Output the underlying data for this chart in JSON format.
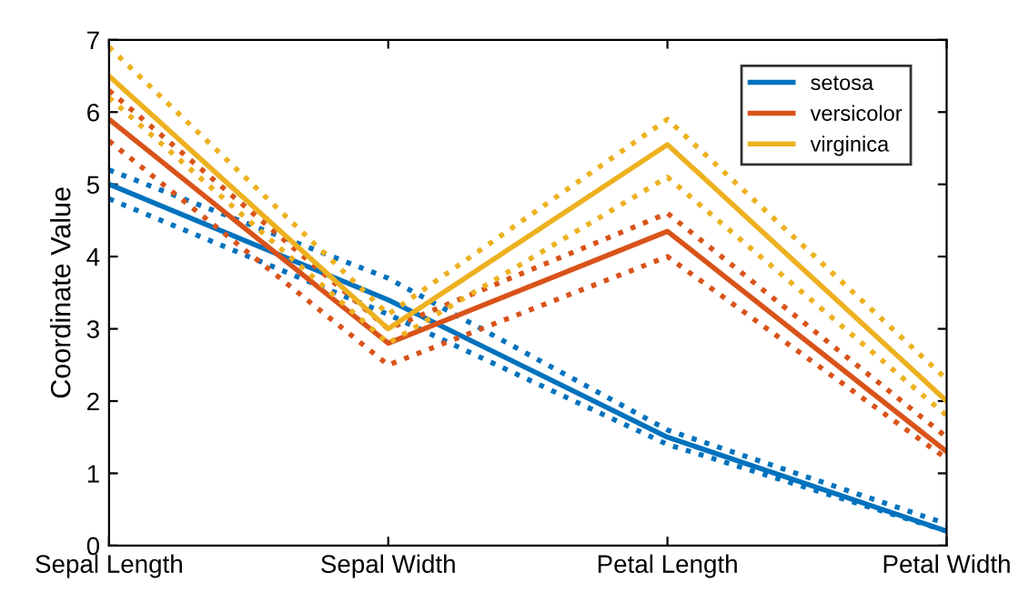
{
  "chart_data": {
    "type": "line",
    "ylabel": "Coordinate Value",
    "categories": [
      "Sepal Length",
      "Sepal Width",
      "Petal Length",
      "Petal Width"
    ],
    "series": [
      {
        "name": "setosa",
        "color": "#0072bd",
        "line_style": "solid",
        "values": [
          5.0,
          3.4,
          1.5,
          0.2
        ]
      },
      {
        "color": "#0072bd",
        "line_style": "dotted",
        "values": [
          4.8,
          3.2,
          1.4,
          0.2
        ]
      },
      {
        "color": "#0072bd",
        "line_style": "dotted",
        "values": [
          5.2,
          3.7,
          1.6,
          0.3
        ]
      },
      {
        "name": "versicolor",
        "color": "#d95319",
        "line_style": "solid",
        "values": [
          5.9,
          2.8,
          4.35,
          1.3
        ]
      },
      {
        "color": "#d95319",
        "line_style": "dotted",
        "values": [
          5.6,
          2.5,
          4.0,
          1.2
        ]
      },
      {
        "color": "#d95319",
        "line_style": "dotted",
        "values": [
          6.3,
          3.0,
          4.6,
          1.5
        ]
      },
      {
        "name": "virginica",
        "color": "#edb120",
        "line_style": "solid",
        "values": [
          6.5,
          3.0,
          5.55,
          2.0
        ]
      },
      {
        "color": "#edb120",
        "line_style": "dotted",
        "values": [
          6.2,
          2.8,
          5.1,
          1.8
        ]
      },
      {
        "color": "#edb120",
        "line_style": "dotted",
        "values": [
          6.9,
          3.2,
          5.9,
          2.3
        ]
      }
    ],
    "ylim": [
      0,
      7
    ],
    "yticks": [
      0,
      1,
      2,
      3,
      4,
      5,
      6,
      7
    ],
    "grid": false,
    "legend": "top right"
  }
}
